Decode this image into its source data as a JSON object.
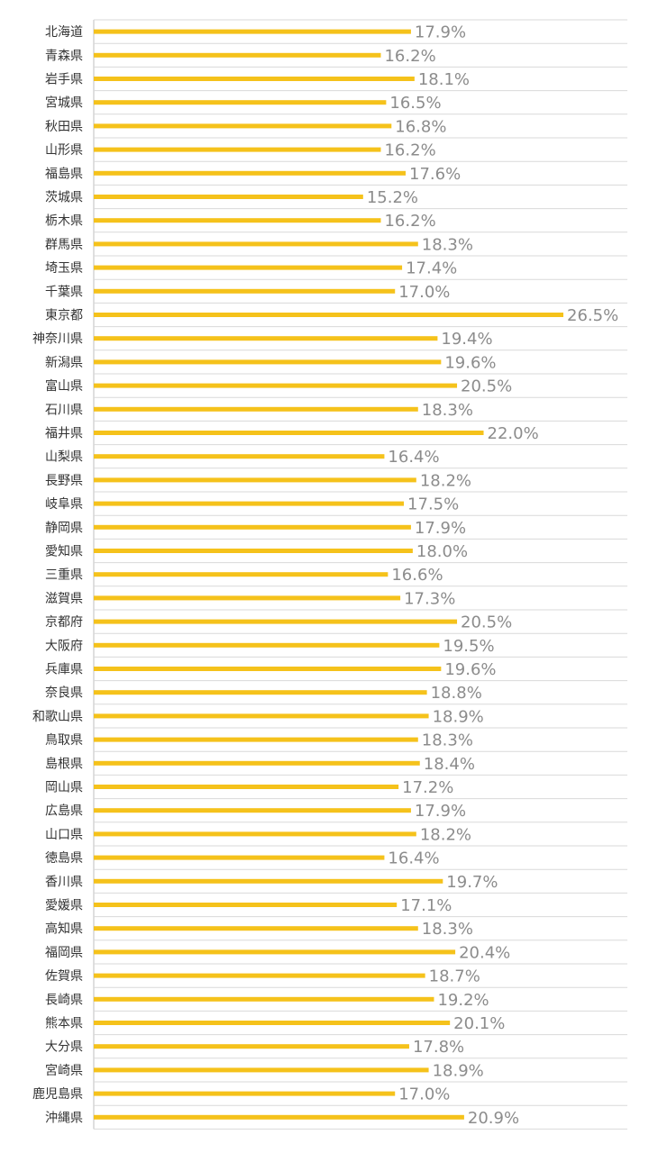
{
  "chart_data": {
    "type": "bar",
    "orientation": "horizontal",
    "categories": [
      "北海道",
      "青森県",
      "岩手県",
      "宮城県",
      "秋田県",
      "山形県",
      "福島県",
      "茨城県",
      "栃木県",
      "群馬県",
      "埼玉県",
      "千葉県",
      "東京都",
      "神奈川県",
      "新潟県",
      "富山県",
      "石川県",
      "福井県",
      "山梨県",
      "長野県",
      "岐阜県",
      "静岡県",
      "愛知県",
      "三重県",
      "滋賀県",
      "京都府",
      "大阪府",
      "兵庫県",
      "奈良県",
      "和歌山県",
      "鳥取県",
      "島根県",
      "岡山県",
      "広島県",
      "山口県",
      "徳島県",
      "香川県",
      "愛媛県",
      "高知県",
      "福岡県",
      "佐賀県",
      "長崎県",
      "熊本県",
      "大分県",
      "宮崎県",
      "鹿児島県",
      "沖縄県"
    ],
    "values": [
      17.9,
      16.2,
      18.1,
      16.5,
      16.8,
      16.2,
      17.6,
      15.2,
      16.2,
      18.3,
      17.4,
      17.0,
      26.5,
      19.4,
      19.6,
      20.5,
      18.3,
      22.0,
      16.4,
      18.2,
      17.5,
      17.9,
      18.0,
      16.6,
      17.3,
      20.5,
      19.5,
      19.6,
      18.8,
      18.9,
      18.3,
      18.4,
      17.2,
      17.9,
      18.2,
      16.4,
      19.7,
      17.1,
      18.3,
      20.4,
      18.7,
      19.2,
      20.1,
      17.8,
      18.9,
      17.0,
      20.9
    ],
    "value_labels": [
      "17.9%",
      "16.2%",
      "18.1%",
      "16.5%",
      "16.8%",
      "16.2%",
      "17.6%",
      "15.2%",
      "16.2%",
      "18.3%",
      "17.4%",
      "17.0%",
      "26.5%",
      "19.4%",
      "19.6%",
      "20.5%",
      "18.3%",
      "22.0%",
      "16.4%",
      "18.2%",
      "17.5%",
      "17.9%",
      "18.0%",
      "16.6%",
      "17.3%",
      "20.5%",
      "19.5%",
      "19.6%",
      "18.8%",
      "18.9%",
      "18.3%",
      "18.4%",
      "17.2%",
      "17.9%",
      "18.2%",
      "16.4%",
      "19.7%",
      "17.1%",
      "18.3%",
      "20.4%",
      "18.7%",
      "19.2%",
      "20.1%",
      "17.8%",
      "18.9%",
      "17.0%",
      "20.9%"
    ],
    "xlim": [
      0,
      30
    ],
    "grid": "horizontal-separators",
    "bar_color": "#f5c21b",
    "value_label_color": "#8c8c8c",
    "category_label_color": "#333333",
    "grid_color": "#d9d9d9"
  }
}
